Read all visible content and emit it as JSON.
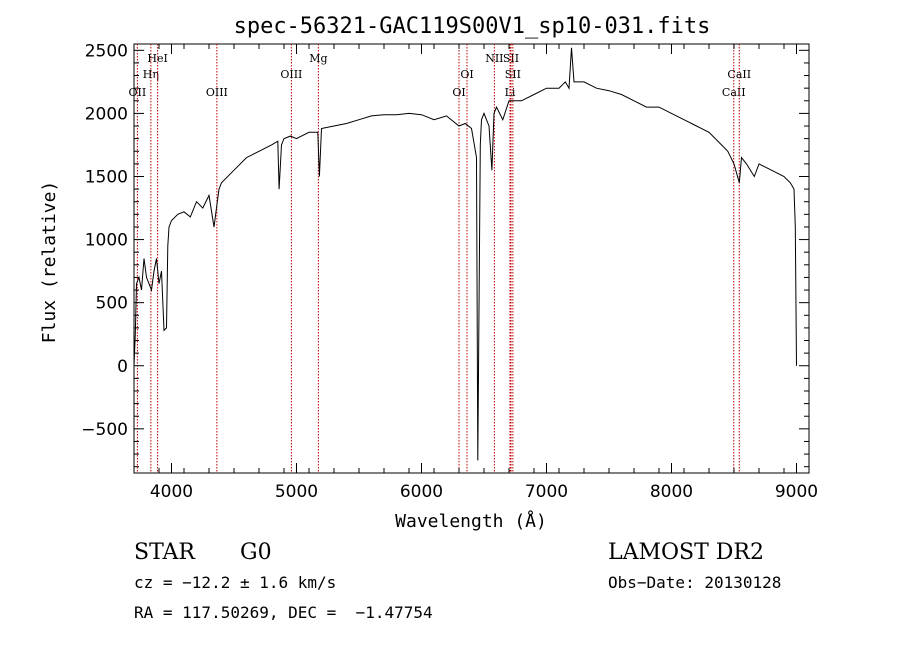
{
  "chart_data": {
    "type": "line",
    "title": "spec-56321-GAC119S00V1_sp10-031.fits",
    "xlabel": "Wavelength (Å)",
    "ylabel": "Flux (relative)",
    "xlim": [
      3700,
      9100
    ],
    "ylim": [
      -850,
      2550
    ],
    "xticks": [
      4000,
      5000,
      6000,
      7000,
      8000,
      9000
    ],
    "yticks": [
      -500,
      0,
      500,
      1000,
      1500,
      2000,
      2500
    ],
    "series": [
      {
        "x": [
          3700,
          3710,
          3720,
          3740,
          3760,
          3780,
          3800,
          3820,
          3840,
          3860,
          3880,
          3900,
          3920,
          3940,
          3960,
          3970,
          3980,
          4000,
          4050,
          4100,
          4150,
          4200,
          4250,
          4300,
          4340,
          4380,
          4400,
          4500,
          4600,
          4700,
          4800,
          4850,
          4861,
          4880,
          4900,
          4950,
          5000,
          5100,
          5170,
          5183,
          5200,
          5300,
          5400,
          5500,
          5600,
          5700,
          5800,
          5900,
          6000,
          6100,
          6200,
          6300,
          6350,
          6400,
          6440,
          6450,
          6470,
          6480,
          6500,
          6540,
          6563,
          6580,
          6600,
          6650,
          6700,
          6800,
          6900,
          7000,
          7100,
          7150,
          7180,
          7200,
          7220,
          7300,
          7400,
          7500,
          7600,
          7700,
          7800,
          7900,
          8000,
          8100,
          8200,
          8300,
          8400,
          8450,
          8500,
          8542,
          8560,
          8600,
          8662,
          8700,
          8800,
          8900,
          8950,
          8980,
          8990,
          9000
        ],
        "y": [
          0,
          250,
          650,
          700,
          600,
          850,
          700,
          650,
          600,
          750,
          850,
          650,
          750,
          280,
          300,
          950,
          1100,
          1150,
          1200,
          1220,
          1180,
          1300,
          1250,
          1350,
          1100,
          1400,
          1450,
          1550,
          1650,
          1700,
          1750,
          1780,
          1400,
          1750,
          1800,
          1820,
          1800,
          1850,
          1850,
          1500,
          1880,
          1900,
          1920,
          1950,
          1980,
          1990,
          1990,
          2000,
          1990,
          1950,
          1980,
          1900,
          1920,
          1880,
          1650,
          -750,
          1750,
          1950,
          2000,
          1900,
          1550,
          2000,
          2050,
          1950,
          2100,
          2100,
          2150,
          2200,
          2200,
          2250,
          2200,
          2520,
          2250,
          2250,
          2200,
          2180,
          2150,
          2100,
          2050,
          2050,
          2000,
          1950,
          1900,
          1850,
          1750,
          1700,
          1600,
          1450,
          1650,
          1600,
          1500,
          1600,
          1550,
          1500,
          1450,
          1400,
          1100,
          0
        ]
      }
    ],
    "lines": [
      {
        "name": "OII",
        "x": 3727,
        "row": 3
      },
      {
        "name": "Hη",
        "x": 3835,
        "row": 2
      },
      {
        "name": "HeI",
        "x": 3889,
        "row": 1
      },
      {
        "name": "OIII",
        "x": 4363,
        "row": 3
      },
      {
        "name": "OIII",
        "x": 4959,
        "row": 2
      },
      {
        "name": "Mg",
        "x": 5175,
        "row": 1
      },
      {
        "name": "OI",
        "x": 6300,
        "row": 3
      },
      {
        "name": "OI",
        "x": 6364,
        "row": 2
      },
      {
        "name": "NII",
        "x": 6583,
        "row": 1
      },
      {
        "name": "SII",
        "x": 6716,
        "row": 1
      },
      {
        "name": "SII",
        "x": 6731,
        "row": 2
      },
      {
        "name": "Li",
        "x": 6708,
        "row": 3
      },
      {
        "name": "CaII",
        "x": 8498,
        "row": 3
      },
      {
        "name": "CaII",
        "x": 8542,
        "row": 2
      }
    ],
    "line_color": "#c00000"
  },
  "info": {
    "class": "STAR",
    "subclass": "G0",
    "survey": "LAMOST DR2",
    "cz": "cz = −12.2 ± 1.6 km/s",
    "obs_date": "Obs−Date: 20130128",
    "radec": "RA = 117.50269, DEC =  −1.47754"
  }
}
